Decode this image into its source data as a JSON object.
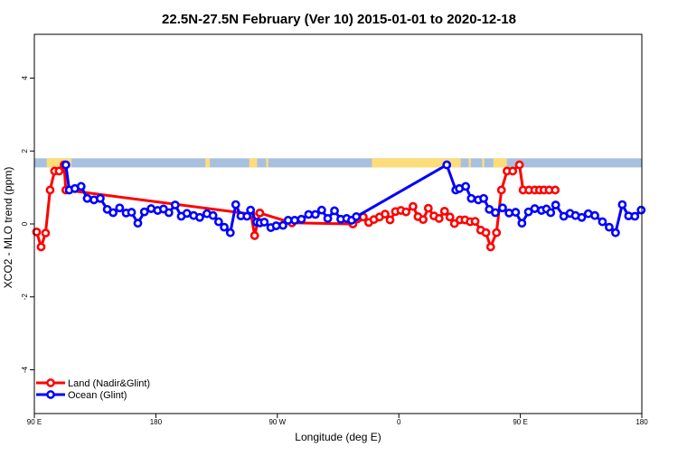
{
  "chart_data": {
    "type": "line",
    "title": "22.5N-27.5N February (Ver 10)   2015-01-01 to 2020-12-18",
    "xlabel": "Longitude (deg E)",
    "ylabel": "XCO2 - MLO trend (ppm)",
    "xlim": [
      -90,
      180
    ],
    "ylim": [
      -5.2,
      5.2
    ],
    "x_ticks": [
      {
        "value": -90,
        "label": "90 E"
      },
      {
        "value": -36,
        "label": "180"
      },
      {
        "value": 18,
        "label": "90 W"
      },
      {
        "value": 72,
        "label": "0"
      },
      {
        "value": 126,
        "label": "90 E"
      },
      {
        "value": 180,
        "label": "180"
      }
    ],
    "y_ticks": [
      {
        "value": -4,
        "label": "-4"
      },
      {
        "value": -2,
        "label": "-2"
      },
      {
        "value": 0,
        "label": "0"
      },
      {
        "value": 2,
        "label": "2"
      },
      {
        "value": 4,
        "label": "4"
      }
    ],
    "grid": false,
    "legend_position": "bottom-left",
    "map_strip": {
      "y_range": [
        1.55,
        1.8
      ],
      "ocean_color": "#a8c0df",
      "land_color": "#fddc7a",
      "land_segments": [
        [
          -84.5,
          -73.5
        ],
        [
          -14,
          -12
        ],
        [
          5.5,
          9
        ],
        [
          13,
          14
        ],
        [
          60,
          99.5
        ],
        [
          103,
          104
        ],
        [
          109,
          110
        ],
        [
          114,
          120
        ]
      ]
    },
    "series": [
      {
        "name": "Land (Nadir&Glint)",
        "color": "#ff0000",
        "x": [
          -89,
          -87,
          -85,
          -83,
          -81,
          -79,
          -76.8,
          -76,
          6.3,
          7.9,
          10.2,
          24.5,
          51.6,
          53.7,
          56.2,
          58.6,
          60.9,
          63.4,
          65.9,
          68.1,
          70.5,
          72.9,
          75.2,
          78.3,
          80.5,
          82.8,
          85.1,
          87.6,
          89.9,
          92.3,
          94.7,
          96.7,
          99.2,
          101.4,
          103.7,
          105.9,
          108.4,
          110.7,
          112.8,
          115.4,
          117.6,
          120.1,
          122.6,
          125.6,
          127.2,
          129.8,
          132.4,
          134.5,
          136.5,
          138.8,
          141.5
        ],
        "y": [
          -0.22,
          -0.63,
          -0.25,
          0.93,
          1.45,
          1.45,
          1.62,
          0.93,
          0.27,
          -0.32,
          0.3,
          0.03,
          0.0,
          0.14,
          0.19,
          0.04,
          0.12,
          0.19,
          0.27,
          0.11,
          0.34,
          0.37,
          0.33,
          0.48,
          0.2,
          0.12,
          0.43,
          0.22,
          0.15,
          0.35,
          0.19,
          0.01,
          0.11,
          0.11,
          0.06,
          0.07,
          -0.17,
          -0.24,
          -0.63,
          -0.24,
          0.93,
          1.45,
          1.45,
          1.62,
          0.93,
          0.93,
          0.93,
          0.93,
          0.93,
          0.93,
          0.93
        ]
      },
      {
        "name": "Ocean (Glint)",
        "color": "#0000ff",
        "x": [
          -76,
          -74.5,
          -72,
          -69.2,
          -66.5,
          -63.5,
          -60.7,
          -57.6,
          -55,
          -52.1,
          -49.2,
          -46.8,
          -44,
          -41.1,
          -38.1,
          -35.2,
          -32.6,
          -30.2,
          -27.4,
          -24.7,
          -22.2,
          -19.2,
          -16.5,
          -13.3,
          -10.6,
          -8.1,
          -5.6,
          -2.9,
          -0.5,
          1.8,
          4.5,
          6.1,
          8.8,
          10.3,
          12.2,
          15.1,
          17.5,
          20.5,
          22.8,
          25.7,
          28.7,
          31.9,
          34.9,
          37.7,
          40.4,
          43.4,
          46.2,
          48.8,
          51,
          53.1,
          93.3,
          97.3,
          98.9,
          101.7,
          104.2,
          107.3,
          109.7,
          112.2,
          114.9,
          118.1,
          121,
          123.9,
          126.7,
          129.6,
          132.4,
          135.4,
          137.6,
          139.5,
          141.7,
          145.3,
          148.1,
          150.5,
          153.3,
          156.2,
          159.1,
          162.5,
          165.5,
          168.3,
          171.3,
          174.1,
          176.9,
          179.7
        ],
        "y": [
          1.62,
          0.93,
          0.97,
          1.03,
          0.7,
          0.66,
          0.7,
          0.4,
          0.31,
          0.44,
          0.3,
          0.32,
          0.02,
          0.33,
          0.42,
          0.37,
          0.41,
          0.31,
          0.52,
          0.21,
          0.29,
          0.23,
          0.18,
          0.28,
          0.23,
          0.06,
          -0.09,
          -0.24,
          0.53,
          0.22,
          0.21,
          0.38,
          0.05,
          0.03,
          0.05,
          -0.1,
          -0.05,
          -0.04,
          0.1,
          0.1,
          0.13,
          0.26,
          0.26,
          0.38,
          0.15,
          0.36,
          0.13,
          0.15,
          0.1,
          0.2,
          1.62,
          0.93,
          0.97,
          1.03,
          0.7,
          0.66,
          0.7,
          0.4,
          0.31,
          0.44,
          0.3,
          0.32,
          0.02,
          0.33,
          0.42,
          0.37,
          0.41,
          0.31,
          0.52,
          0.21,
          0.29,
          0.23,
          0.18,
          0.28,
          0.23,
          0.06,
          -0.09,
          -0.24,
          0.53,
          0.22,
          0.21,
          0.38
        ]
      }
    ]
  }
}
